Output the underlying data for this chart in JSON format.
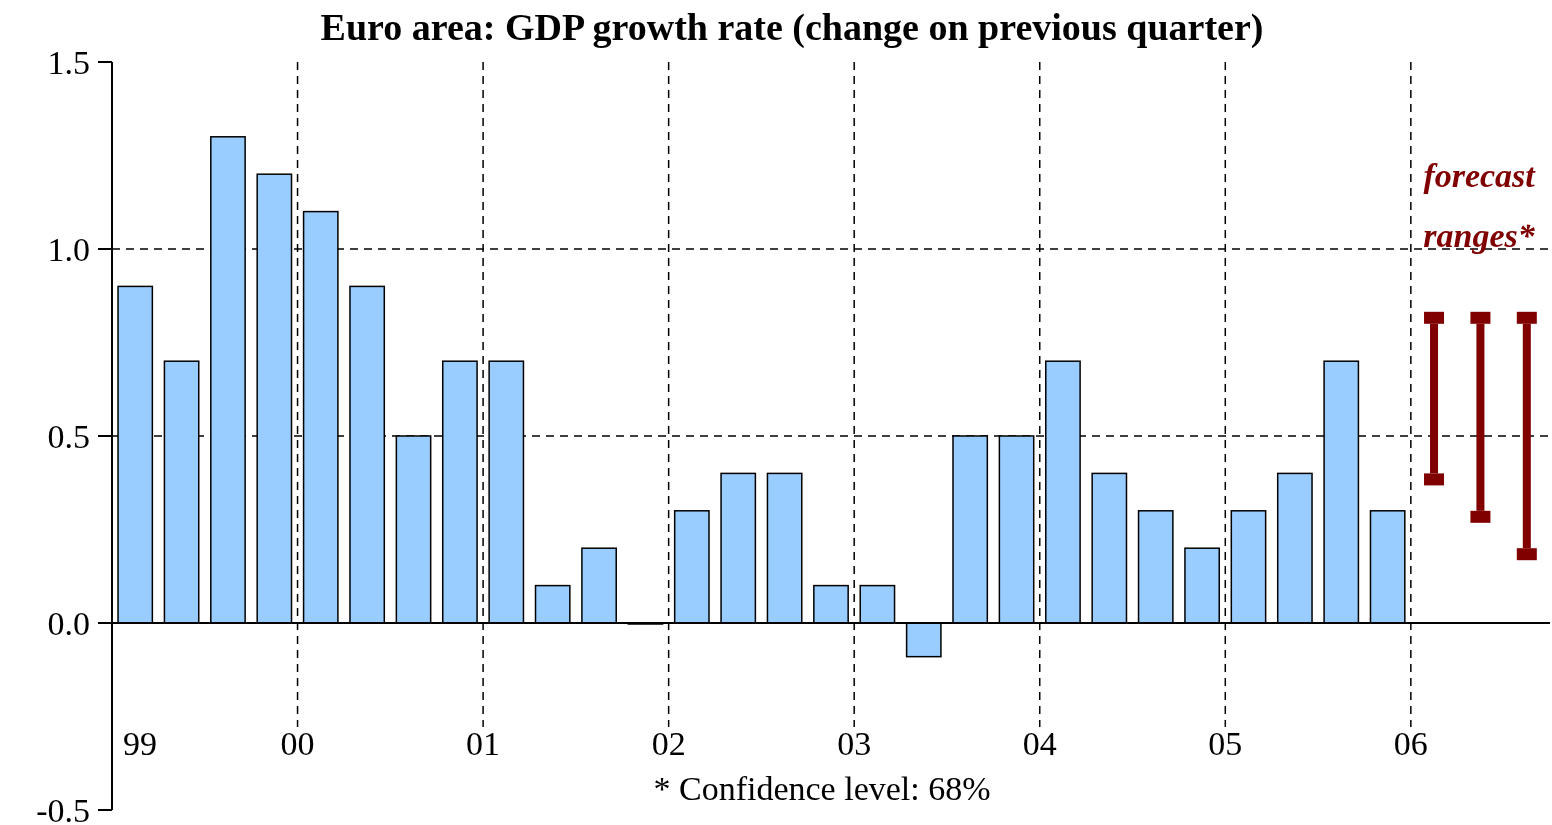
{
  "chart_data": {
    "type": "bar",
    "title": "Euro area: GDP growth rate (change on previous quarter)",
    "annotations": [
      "* Confidence level: 68%"
    ],
    "xlim": [
      1999,
      2006.75
    ],
    "xticks": [
      {
        "value": 1999,
        "label": "99"
      },
      {
        "value": 2000,
        "label": "00"
      },
      {
        "value": 2001,
        "label": "01"
      },
      {
        "value": 2002,
        "label": "02"
      },
      {
        "value": 2003,
        "label": "03"
      },
      {
        "value": 2004,
        "label": "04"
      },
      {
        "value": 2005,
        "label": "05"
      },
      {
        "value": 2006,
        "label": "06"
      }
    ],
    "ylim": [
      -0.5,
      1.5
    ],
    "yticks": [
      {
        "value": -0.5,
        "label": "-0.5"
      },
      {
        "value": 0,
        "label": "0.0"
      },
      {
        "value": 0.5,
        "label": "0.5"
      },
      {
        "value": 1,
        "label": "1.0"
      },
      {
        "value": 1.5,
        "label": "1.5"
      }
    ],
    "grid": true,
    "series": [
      {
        "color": "#99ccff",
        "x": [
          1999.125,
          1999.375,
          1999.625,
          1999.875,
          2000.125,
          2000.375,
          2000.625,
          2000.875,
          2001.125,
          2001.375,
          2001.625,
          2001.875,
          2002.125,
          2002.375,
          2002.625,
          2002.875,
          2003.125,
          2003.375,
          2003.625,
          2003.875,
          2004.125,
          2004.375,
          2004.625,
          2004.875,
          2005.125,
          2005.375,
          2005.625,
          2005.875
        ],
        "values": [
          0.9,
          0.7,
          1.3,
          1.2,
          1.1,
          0.9,
          0.5,
          0.7,
          0.7,
          0.1,
          0.2,
          0.0,
          0.3,
          0.4,
          0.4,
          0.1,
          0.1,
          -0.09,
          0.5,
          0.5,
          0.7,
          0.4,
          0.3,
          0.2,
          0.3,
          0.4,
          0.7,
          0.3
        ]
      },
      {
        "name": "forecast ranges*",
        "color": "#800000",
        "x": [
          2006.125,
          2006.375,
          2006.625
        ],
        "base": [
          0.4,
          0.3,
          0.2
        ],
        "values": [
          0.4,
          0.5,
          0.6
        ]
      }
    ]
  }
}
